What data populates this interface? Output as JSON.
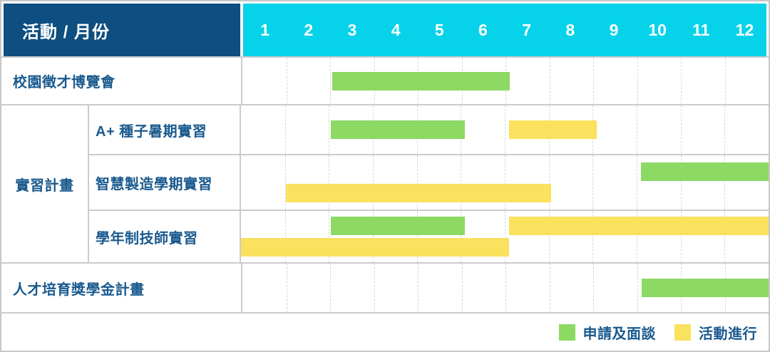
{
  "header": {
    "row_label_column_title": "活動 / 月份",
    "months": [
      "1",
      "2",
      "3",
      "4",
      "5",
      "6",
      "7",
      "8",
      "9",
      "10",
      "11",
      "12"
    ]
  },
  "legend": {
    "items": [
      {
        "label": "申請及面談",
        "color_key": "green"
      },
      {
        "label": "活動進行",
        "color_key": "yellow"
      }
    ]
  },
  "colors": {
    "header_navy": "#0E4E80",
    "header_cyan": "#06D3EA",
    "label_text_blue": "#1A5A8E",
    "grid_border_gray": "#CBCBCB",
    "month_gridline_gray": "#D8D8D8"
  },
  "chart_data": {
    "type": "bar",
    "subtype": "gantt-monthly",
    "title": "活動 / 月份",
    "xlabel": "月份",
    "x_ticks": [
      1,
      2,
      3,
      4,
      5,
      6,
      7,
      8,
      9,
      10,
      11,
      12
    ],
    "x_range": [
      1,
      13
    ],
    "grid": "vertical-dashed-month-lines",
    "legend_position": "bottom-right",
    "palette": {
      "green": "#8CD963",
      "yellow": "#FAE15E"
    },
    "series_legend": [
      {
        "name": "申請及面談",
        "color_key": "green"
      },
      {
        "name": "活動進行",
        "color_key": "yellow"
      }
    ],
    "tasks": [
      {
        "group": "",
        "label": "校園徵才博覽會",
        "bands": [
          [
            {
              "series": "申請及面談",
              "color_key": "green",
              "start_month": 3.05,
              "end_month": 7.1
            }
          ]
        ]
      },
      {
        "group": "實習計畫",
        "label": "A+ 種子暑期實習",
        "bands": [
          [
            {
              "series": "申請及面談",
              "color_key": "green",
              "start_month": 3.05,
              "end_month": 6.1
            },
            {
              "series": "活動進行",
              "color_key": "yellow",
              "start_month": 7.1,
              "end_month": 9.1
            }
          ]
        ]
      },
      {
        "group": "實習計畫",
        "label": "智慧製造學期實習",
        "bands": [
          [
            {
              "series": "申請及面談",
              "color_key": "green",
              "start_month": 10.1,
              "end_month": 13
            }
          ],
          [
            {
              "series": "活動進行",
              "color_key": "yellow",
              "start_month": 2.02,
              "end_month": 8.05
            }
          ]
        ]
      },
      {
        "group": "實習計畫",
        "label": "學年制技師實習",
        "bands": [
          [
            {
              "series": "申請及面談",
              "color_key": "green",
              "start_month": 3.05,
              "end_month": 6.1
            },
            {
              "series": "活動進行",
              "color_key": "yellow",
              "start_month": 7.1,
              "end_month": 13
            }
          ],
          [
            {
              "series": "活動進行",
              "color_key": "yellow",
              "start_month": 1,
              "end_month": 7.1
            }
          ]
        ]
      },
      {
        "group": "",
        "label": "人才培育獎學金計畫",
        "bands": [
          [
            {
              "series": "申請及面談",
              "color_key": "green",
              "start_month": 10.1,
              "end_month": 13
            }
          ]
        ]
      }
    ]
  }
}
